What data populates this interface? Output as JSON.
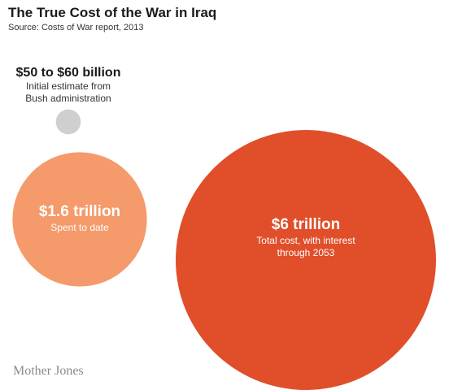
{
  "header": {
    "title": "The True Cost of the War in Iraq",
    "source": "Source: Costs of War report, 2013"
  },
  "brand": "Mother Jones",
  "colors": {
    "initial_estimate": "#cfcfcf",
    "spent_to_date": "#f49a6b",
    "total_cost": "#e04e2a",
    "dark_text": "#1a1a1a",
    "light_text": "#ffffff",
    "mid_text": "#333333"
  },
  "chart_data": {
    "type": "bubble",
    "unit": "USD",
    "items": [
      {
        "key": "initial",
        "value_label": "$50 to $60 billion",
        "description_lines": [
          "Initial estimate from",
          "Bush administration"
        ],
        "value": 55000000000
      },
      {
        "key": "spent",
        "value_label": "$1.6 trillion",
        "description_lines": [
          "Spent to date"
        ],
        "value": 1600000000000
      },
      {
        "key": "total",
        "value_label": "$6 trillion",
        "description_lines": [
          "Total cost, with interest",
          "through 2053"
        ],
        "value": 6000000000000
      }
    ]
  }
}
